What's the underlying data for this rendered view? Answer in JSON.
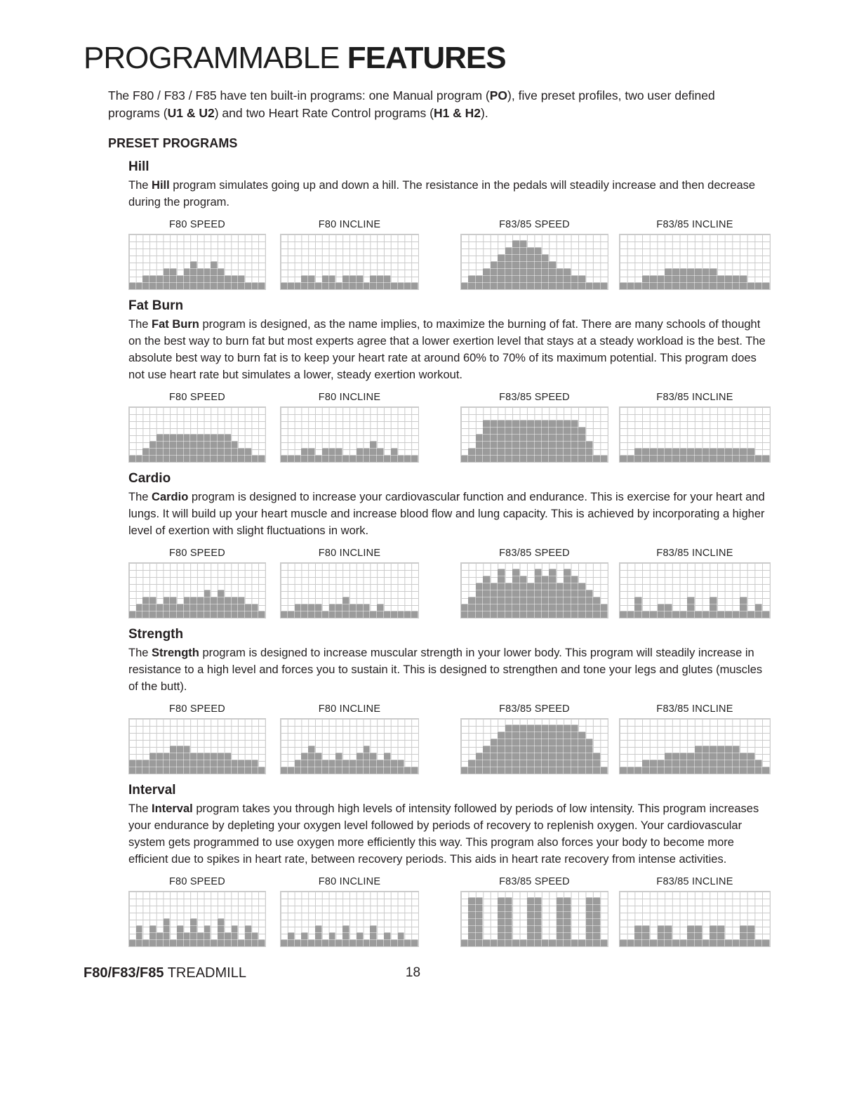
{
  "colors": {
    "bar": "#9b9b9b",
    "grid": "#cbcbcb",
    "text": "#231f20"
  },
  "title": {
    "light": "PROGRAMMABLE",
    "bold": "FEATURES"
  },
  "intro_segments": [
    {
      "t": "The F80 / F83 / F85 have ten built-in programs: one Manual program ("
    },
    {
      "t": "PO",
      "b": true
    },
    {
      "t": "), five preset profiles, two user defined programs ("
    },
    {
      "t": "U1 & U2",
      "b": true
    },
    {
      "t": ") and two Heart Rate Control programs ("
    },
    {
      "t": "H1 & H2",
      "b": true
    },
    {
      "t": ")."
    }
  ],
  "preset_heading": "PRESET PROGRAMS",
  "profile_grid": {
    "type": "bar",
    "columns": 20,
    "rows": 8,
    "ylim": [
      0,
      8
    ]
  },
  "programs": [
    {
      "name": "Hill",
      "desc": [
        {
          "t": "The "
        },
        {
          "t": "Hill",
          "b": true
        },
        {
          "t": " program simulates going up and down a hill. The resistance in the pedals will steadily increase and then decrease during the program."
        }
      ],
      "charts": [
        {
          "label": "F80 SPEED",
          "values": [
            1,
            1,
            2,
            2,
            2,
            3,
            3,
            2,
            3,
            4,
            3,
            3,
            4,
            3,
            2,
            2,
            2,
            1,
            1,
            1
          ]
        },
        {
          "label": "F80 INCLINE",
          "values": [
            1,
            1,
            1,
            2,
            2,
            1,
            2,
            2,
            1,
            2,
            2,
            2,
            1,
            2,
            2,
            2,
            1,
            1,
            1,
            1
          ]
        },
        {
          "label": "F83/85 SPEED",
          "values": [
            1,
            2,
            2,
            3,
            4,
            5,
            6,
            7,
            7,
            6,
            6,
            5,
            4,
            3,
            3,
            2,
            2,
            1,
            1,
            1
          ]
        },
        {
          "label": "F83/85 INCLINE",
          "values": [
            1,
            1,
            1,
            2,
            2,
            2,
            3,
            3,
            3,
            3,
            3,
            3,
            3,
            2,
            2,
            2,
            2,
            1,
            1,
            1
          ]
        }
      ]
    },
    {
      "name": "Fat Burn",
      "desc": [
        {
          "t": "The "
        },
        {
          "t": "Fat Burn",
          "b": true
        },
        {
          "t": " program is designed, as the name implies, to maximize the burning of fat. There are many schools of thought on the best way to burn fat but most experts agree that a lower exertion level that stays at a steady workload is the best. The absolute best way to burn fat is to keep your heart rate at around 60% to 70% of its maximum potential. This program does not use heart rate but simulates a lower, steady exertion workout."
        }
      ],
      "charts": [
        {
          "label": "F80 SPEED",
          "values": [
            1,
            1,
            2,
            3,
            4,
            4,
            4,
            4,
            4,
            4,
            4,
            4,
            4,
            4,
            4,
            3,
            2,
            2,
            1,
            1
          ]
        },
        {
          "label": "F80 INCLINE",
          "values": [
            1,
            1,
            1,
            2,
            2,
            1,
            2,
            2,
            2,
            1,
            1,
            2,
            2,
            3,
            2,
            1,
            2,
            1,
            1,
            1
          ]
        },
        {
          "label": "F83/85 SPEED",
          "values": [
            1,
            2,
            4,
            6,
            6,
            6,
            6,
            6,
            6,
            6,
            6,
            6,
            6,
            6,
            6,
            6,
            5,
            3,
            1,
            1
          ]
        },
        {
          "label": "F83/85 INCLINE",
          "values": [
            1,
            1,
            2,
            2,
            2,
            2,
            2,
            2,
            2,
            2,
            2,
            2,
            2,
            2,
            2,
            2,
            2,
            2,
            1,
            1
          ]
        }
      ]
    },
    {
      "name": "Cardio",
      "desc": [
        {
          "t": "The "
        },
        {
          "t": "Cardio",
          "b": true
        },
        {
          "t": " program is designed to increase your cardiovascular function and endurance. This is exercise for your heart and lungs. It will build up your heart muscle and increase blood flow and lung capacity. This is achieved by incorporating a higher level of exertion with slight fluctuations in work."
        }
      ],
      "charts": [
        {
          "label": "F80 SPEED",
          "values": [
            1,
            2,
            3,
            3,
            2,
            3,
            3,
            2,
            3,
            3,
            3,
            4,
            3,
            4,
            3,
            3,
            3,
            2,
            2,
            1
          ]
        },
        {
          "label": "F80 INCLINE",
          "values": [
            1,
            1,
            2,
            2,
            2,
            2,
            1,
            2,
            2,
            3,
            2,
            2,
            2,
            1,
            2,
            1,
            1,
            1,
            1,
            1
          ]
        },
        {
          "label": "F83/85 SPEED",
          "values": [
            2,
            3,
            5,
            6,
            5,
            7,
            5,
            7,
            6,
            5,
            7,
            6,
            7,
            5,
            7,
            6,
            5,
            4,
            3,
            2
          ]
        },
        {
          "label": "F83/85 INCLINE",
          "values": [
            1,
            1,
            3,
            1,
            1,
            2,
            2,
            1,
            1,
            3,
            1,
            1,
            3,
            1,
            1,
            1,
            3,
            1,
            2,
            1
          ]
        }
      ]
    },
    {
      "name": "Strength",
      "desc": [
        {
          "t": "The "
        },
        {
          "t": "Strength",
          "b": true
        },
        {
          "t": " program is designed to increase muscular strength in your lower body. This program will steadily increase in resistance to a high level and forces you to sustain it. This is designed to strengthen and tone your legs and glutes (muscles of the butt)."
        }
      ],
      "charts": [
        {
          "label": "F80 SPEED",
          "values": [
            2,
            2,
            2,
            3,
            3,
            3,
            4,
            4,
            4,
            3,
            3,
            3,
            3,
            3,
            3,
            2,
            2,
            2,
            2,
            1
          ]
        },
        {
          "label": "F80 INCLINE",
          "values": [
            1,
            1,
            2,
            3,
            4,
            3,
            2,
            2,
            3,
            2,
            2,
            3,
            4,
            3,
            2,
            3,
            2,
            2,
            1,
            1
          ]
        },
        {
          "label": "F83/85 SPEED",
          "values": [
            1,
            2,
            3,
            4,
            5,
            6,
            7,
            7,
            7,
            7,
            7,
            7,
            7,
            7,
            7,
            7,
            6,
            5,
            3,
            1
          ]
        },
        {
          "label": "F83/85 INCLINE",
          "values": [
            1,
            1,
            1,
            2,
            2,
            2,
            3,
            3,
            3,
            3,
            4,
            4,
            4,
            4,
            4,
            4,
            3,
            3,
            2,
            1
          ]
        }
      ]
    },
    {
      "name": "Interval",
      "desc": [
        {
          "t": "The "
        },
        {
          "t": "Interval",
          "b": true
        },
        {
          "t": " program takes you through high levels of intensity followed by periods of low intensity. This program increases your endurance by depleting your oxygen level followed by periods of recovery to replenish oxygen. Your cardiovascular system gets programmed to use oxygen more efficiently this way. This program also forces your body to become more efficient due to spikes in heart rate, between recovery periods. This aids in heart rate recovery from intense activities."
        }
      ],
      "charts": [
        {
          "label": "F80 SPEED",
          "values": [
            1,
            3,
            1,
            3,
            2,
            4,
            1,
            3,
            2,
            4,
            2,
            3,
            1,
            4,
            2,
            3,
            1,
            3,
            2,
            1
          ]
        },
        {
          "label": "F80 INCLINE",
          "values": [
            1,
            2,
            1,
            2,
            1,
            3,
            1,
            2,
            1,
            3,
            1,
            2,
            1,
            3,
            1,
            2,
            1,
            2,
            1,
            1
          ]
        },
        {
          "label": "F83/85 SPEED",
          "values": [
            1,
            7,
            7,
            1,
            1,
            7,
            7,
            1,
            1,
            7,
            7,
            1,
            1,
            7,
            7,
            1,
            1,
            7,
            7,
            1
          ]
        },
        {
          "label": "F83/85 INCLINE",
          "values": [
            1,
            1,
            3,
            3,
            1,
            3,
            3,
            1,
            1,
            3,
            3,
            1,
            3,
            3,
            1,
            1,
            3,
            3,
            1,
            1
          ]
        }
      ]
    }
  ],
  "footer": {
    "model_bold": "F80/F83/F85",
    "model_rest": " TREADMILL",
    "page": "18"
  }
}
